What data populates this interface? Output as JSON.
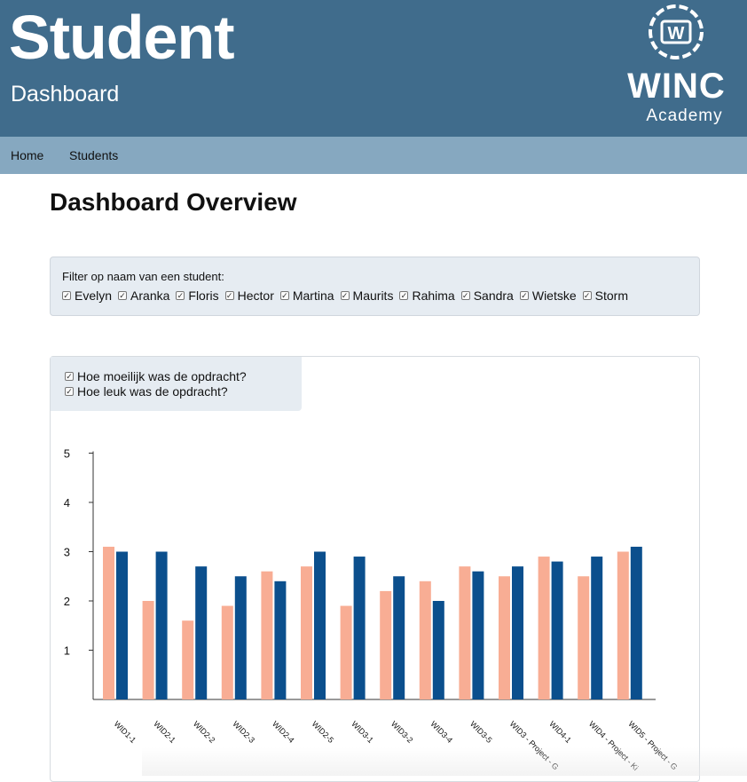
{
  "header": {
    "title": "Student",
    "subtitle": "Dashboard",
    "logo_text": "WINC",
    "logo_sub": "Academy",
    "logo_mark": "W"
  },
  "nav": {
    "home": "Home",
    "students": "Students"
  },
  "page_heading": "Dashboard Overview",
  "filter": {
    "label": "Filter op naam van een student:",
    "students": [
      "Evelyn",
      "Aranka",
      "Floris",
      "Hector",
      "Martina",
      "Maurits",
      "Rahima",
      "Sandra",
      "Wietske",
      "Storm"
    ]
  },
  "legend": {
    "difficulty": "Hoe moeilijk was de opdracht?",
    "fun": "Hoe leuk was de opdracht?"
  },
  "colors": {
    "header": "#406c8c",
    "nav": "#86a8c0",
    "difficulty": "#f8ad94",
    "fun": "#0b4f8d"
  },
  "chart_data": {
    "type": "bar",
    "categories": [
      "WID1-1",
      "WID2-1",
      "WID2-2",
      "WID2-3",
      "WID2-4",
      "WID2-5",
      "WID3-1",
      "WID3-2",
      "WID3-4",
      "WID3-5",
      "WID3 - Project - G",
      "WID4-1",
      "WID4 - Project - Ki",
      "WID5 - Project - G"
    ],
    "series": [
      {
        "name": "Hoe moeilijk was de opdracht?",
        "values": [
          3.1,
          2.0,
          1.6,
          1.9,
          2.6,
          2.7,
          1.9,
          2.2,
          2.4,
          2.7,
          2.5,
          2.9,
          2.5,
          3.0
        ]
      },
      {
        "name": "Hoe leuk was de opdracht?",
        "values": [
          3.0,
          3.0,
          2.7,
          2.5,
          2.4,
          3.0,
          2.9,
          2.5,
          2.0,
          2.6,
          2.7,
          2.8,
          2.9,
          3.1
        ]
      }
    ],
    "yticks": [
      "1",
      "2",
      "3",
      "4",
      "5"
    ],
    "ylim": [
      0,
      5
    ],
    "grid": false,
    "legend": "top-left"
  }
}
